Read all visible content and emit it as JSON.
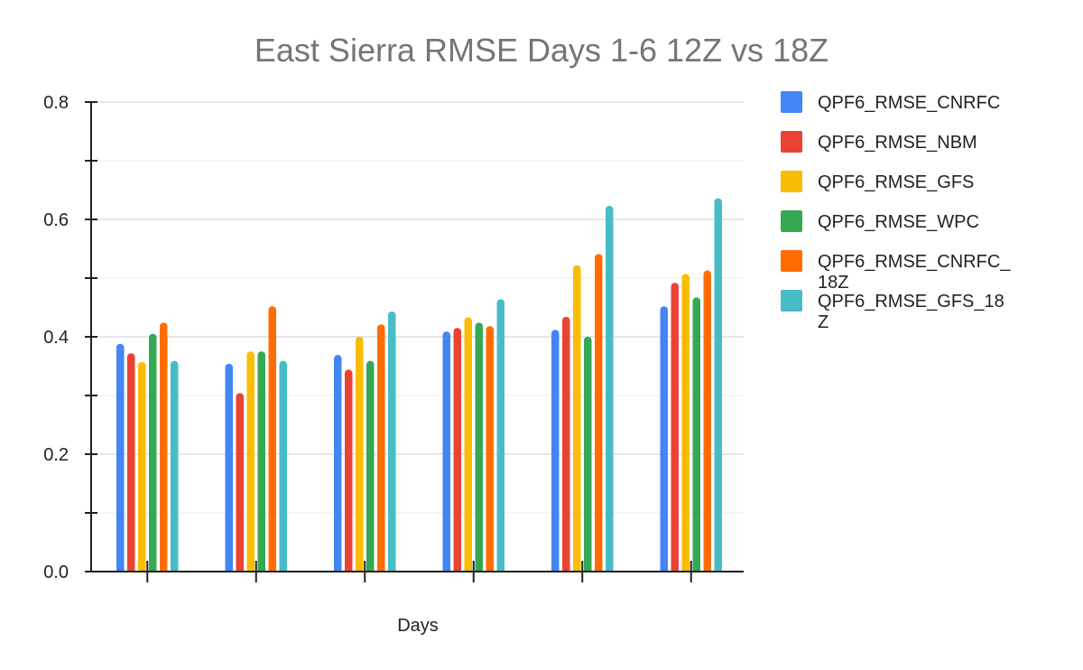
{
  "chart_data": {
    "type": "bar",
    "title": "East Sierra RMSE Days 1-6 12Z vs 18Z",
    "xlabel": "Days",
    "ylabel": "",
    "categories": [
      "",
      "",
      "",
      "",
      "",
      ""
    ],
    "ylim": [
      0,
      0.8
    ],
    "y_ticks": [
      "0.0",
      "0.2",
      "0.4",
      "0.6",
      "0.8"
    ],
    "grid": true,
    "legend_position": "right",
    "series": [
      {
        "name": "QPF6_RMSE_CNRFC",
        "name_lines": [
          "QPF6_RMSE_CNRFC"
        ],
        "color": "#4285F4",
        "values": [
          0.388,
          0.354,
          0.369,
          0.409,
          0.412,
          0.452
        ]
      },
      {
        "name": "QPF6_RMSE_NBM",
        "name_lines": [
          "QPF6_RMSE_NBM"
        ],
        "color": "#EA4335",
        "values": [
          0.372,
          0.304,
          0.344,
          0.415,
          0.434,
          0.492
        ]
      },
      {
        "name": "QPF6_RMSE_GFS",
        "name_lines": [
          "QPF6_RMSE_GFS"
        ],
        "color": "#FBBC04",
        "values": [
          0.357,
          0.375,
          0.4,
          0.433,
          0.522,
          0.507
        ]
      },
      {
        "name": "QPF6_RMSE_WPC",
        "name_lines": [
          "QPF6_RMSE_WPC"
        ],
        "color": "#34A853",
        "values": [
          0.405,
          0.375,
          0.359,
          0.424,
          0.4,
          0.467
        ]
      },
      {
        "name": "QPF6_RMSE_CNRFC_18Z",
        "name_lines": [
          "QPF6_RMSE_CNRFC_",
          "18Z"
        ],
        "color": "#FF6D01",
        "values": [
          0.424,
          0.452,
          0.421,
          0.418,
          0.541,
          0.513
        ]
      },
      {
        "name": "QPF6_RMSE_GFS_18Z",
        "name_lines": [
          "QPF6_RMSE_GFS_18",
          "Z"
        ],
        "color": "#46BDC6",
        "values": [
          0.359,
          0.359,
          0.443,
          0.464,
          0.623,
          0.636
        ]
      }
    ]
  }
}
